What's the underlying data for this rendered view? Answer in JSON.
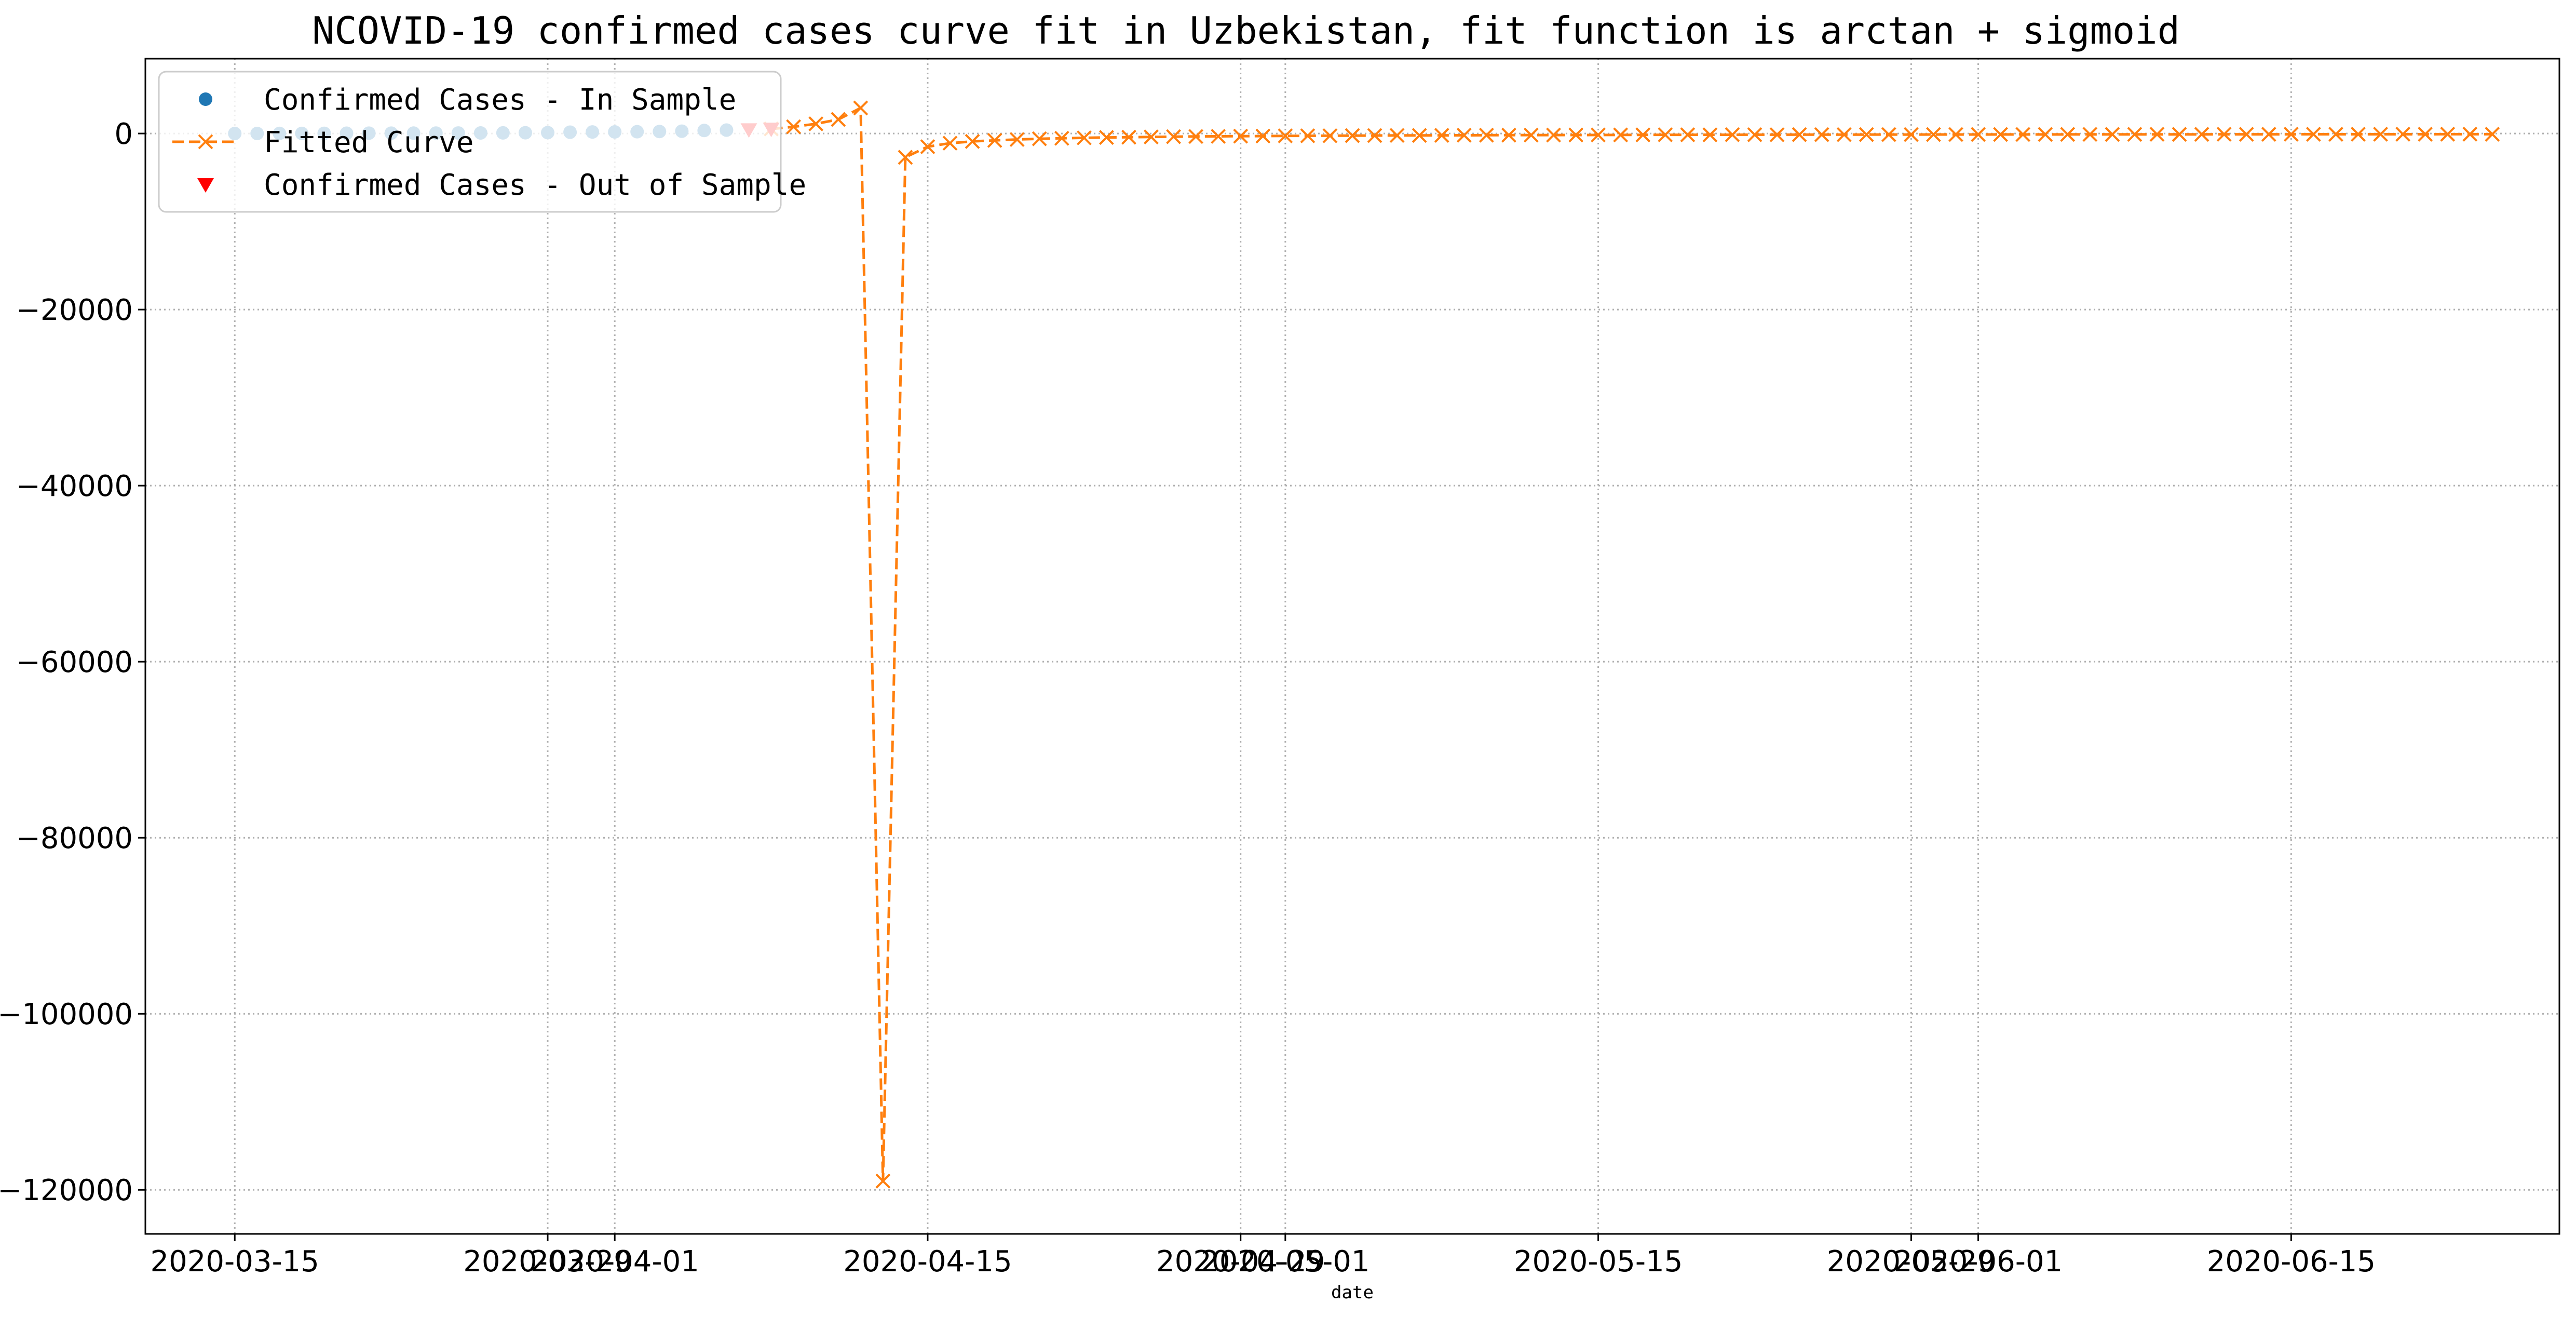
{
  "chart_data": {
    "type": "line",
    "title": "NCOVID-19 confirmed cases curve fit in Uzbekistan, fit function is arctan + sigmoid",
    "xlabel": "date",
    "ylabel": "",
    "xlim": [
      "2020-03-11",
      "2020-06-27"
    ],
    "ylim": [
      -125000,
      8500
    ],
    "grid": true,
    "legend_position": "top-left",
    "colors": {
      "in_sample": "#1f77b4",
      "fitted": "#ff7f0e",
      "out_sample": "#ff0000"
    },
    "x_ticks": [
      {
        "date": "2020-03-15",
        "label": "2020-03-15"
      },
      {
        "date": "2020-03-29",
        "label": "2020-03-29"
      },
      {
        "date": "2020-04-01",
        "label": "2020-04-01"
      },
      {
        "date": "2020-04-15",
        "label": "2020-04-15"
      },
      {
        "date": "2020-04-29",
        "label": "2020-04-29"
      },
      {
        "date": "2020-05-01",
        "label": "2020-05-01"
      },
      {
        "date": "2020-05-15",
        "label": "2020-05-15"
      },
      {
        "date": "2020-05-29",
        "label": "2020-05-29"
      },
      {
        "date": "2020-06-01",
        "label": "2020-06-01"
      },
      {
        "date": "2020-06-15",
        "label": "2020-06-15"
      }
    ],
    "y_ticks": [
      {
        "value": 0,
        "label": "0"
      },
      {
        "value": -20000,
        "label": "−20000"
      },
      {
        "value": -40000,
        "label": "−40000"
      },
      {
        "value": -60000,
        "label": "−60000"
      },
      {
        "value": -80000,
        "label": "−80000"
      },
      {
        "value": -100000,
        "label": "−100000"
      },
      {
        "value": -120000,
        "label": "−120000"
      }
    ],
    "series": [
      {
        "name": "Confirmed Cases - In Sample",
        "marker": "circle",
        "x": [
          "2020-03-15",
          "2020-03-16",
          "2020-03-17",
          "2020-03-18",
          "2020-03-19",
          "2020-03-20",
          "2020-03-21",
          "2020-03-22",
          "2020-03-23",
          "2020-03-24",
          "2020-03-25",
          "2020-03-26",
          "2020-03-27",
          "2020-03-28",
          "2020-03-29",
          "2020-03-30",
          "2020-03-31",
          "2020-04-01",
          "2020-04-02",
          "2020-04-03",
          "2020-04-04",
          "2020-04-05",
          "2020-04-06"
        ],
        "y": [
          1,
          6,
          10,
          15,
          23,
          33,
          43,
          43,
          46,
          50,
          60,
          65,
          75,
          88,
          104,
          149,
          173,
          181,
          205,
          227,
          266,
          342,
          390
        ]
      },
      {
        "name": "Fitted Curve",
        "marker": "x",
        "linestyle": "dashed",
        "x": [
          "2020-04-08",
          "2020-04-09",
          "2020-04-10",
          "2020-04-11",
          "2020-04-12",
          "2020-04-13",
          "2020-04-14",
          "2020-04-15",
          "2020-04-16",
          "2020-04-17",
          "2020-04-18",
          "2020-04-19",
          "2020-04-20",
          "2020-04-21",
          "2020-04-22",
          "2020-04-23",
          "2020-04-24",
          "2020-04-25",
          "2020-04-26",
          "2020-04-27",
          "2020-04-28",
          "2020-04-29",
          "2020-04-30",
          "2020-05-01",
          "2020-05-02",
          "2020-05-03",
          "2020-05-04",
          "2020-05-05",
          "2020-05-06",
          "2020-05-07",
          "2020-05-08",
          "2020-05-09",
          "2020-05-10",
          "2020-05-11",
          "2020-05-12",
          "2020-05-13",
          "2020-05-14",
          "2020-05-15",
          "2020-05-16",
          "2020-05-17",
          "2020-05-18",
          "2020-05-19",
          "2020-05-20",
          "2020-05-21",
          "2020-05-22",
          "2020-05-23",
          "2020-05-24",
          "2020-05-25",
          "2020-05-26",
          "2020-05-27",
          "2020-05-28",
          "2020-05-29",
          "2020-05-30",
          "2020-05-31",
          "2020-06-01",
          "2020-06-02",
          "2020-06-03",
          "2020-06-04",
          "2020-06-05",
          "2020-06-06",
          "2020-06-07",
          "2020-06-08",
          "2020-06-09",
          "2020-06-10",
          "2020-06-11",
          "2020-06-12",
          "2020-06-13",
          "2020-06-14",
          "2020-06-15",
          "2020-06-16",
          "2020-06-17",
          "2020-06-18",
          "2020-06-19",
          "2020-06-20",
          "2020-06-21",
          "2020-06-22",
          "2020-06-23",
          "2020-06-24"
        ],
        "y": [
          520,
          760,
          1100,
          1600,
          2900,
          -119000,
          -2700,
          -1500,
          -1100,
          -900,
          -780,
          -680,
          -600,
          -540,
          -490,
          -450,
          -420,
          -390,
          -360,
          -340,
          -320,
          -300,
          -290,
          -270,
          -260,
          -250,
          -240,
          -230,
          -220,
          -215,
          -205,
          -200,
          -190,
          -185,
          -180,
          -175,
          -170,
          -165,
          -160,
          -155,
          -150,
          -148,
          -145,
          -140,
          -137,
          -134,
          -130,
          -127,
          -125,
          -122,
          -120,
          -117,
          -115,
          -113,
          -111,
          -109,
          -107,
          -105,
          -103,
          -101,
          -100,
          -98,
          -96,
          -95,
          -93,
          -92,
          -90,
          -89,
          -88,
          -86,
          -85,
          -84,
          -83,
          -82,
          -81,
          -80,
          -79,
          -78
        ]
      },
      {
        "name": "Confirmed Cases - Out of Sample",
        "marker": "triangle-down",
        "x": [
          "2020-04-07",
          "2020-04-08"
        ],
        "y": [
          457,
          520
        ]
      }
    ]
  }
}
